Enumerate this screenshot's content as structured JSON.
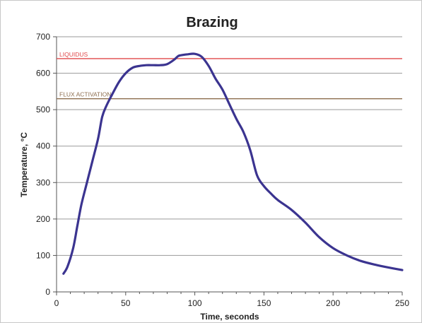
{
  "chart_data": {
    "type": "line",
    "title": "Brazing",
    "xlabel": "Time, seconds",
    "ylabel": "Temperature, °C",
    "xlim": [
      0,
      250
    ],
    "ylim": [
      0,
      700
    ],
    "x_ticks": [
      "0",
      "50",
      "100",
      "150",
      "200",
      "250"
    ],
    "y_ticks": [
      "0",
      "100",
      "200",
      "300",
      "400",
      "500",
      "600",
      "700"
    ],
    "grid": "horizontal",
    "series": [
      {
        "color": "#3b3490",
        "x": [
          5,
          8,
          12,
          15,
          18,
          22,
          26,
          30,
          33,
          36,
          40,
          45,
          50,
          55,
          60,
          65,
          70,
          75,
          80,
          85,
          88,
          91,
          95,
          100,
          105,
          110,
          115,
          120,
          125,
          130,
          135,
          140,
          145,
          150,
          155,
          160,
          170,
          180,
          190,
          200,
          210,
          220,
          230,
          240,
          250
        ],
        "y": [
          50,
          70,
          120,
          180,
          240,
          300,
          360,
          420,
          480,
          510,
          540,
          575,
          600,
          615,
          620,
          622,
          622,
          622,
          625,
          637,
          647,
          650,
          652,
          653,
          645,
          620,
          585,
          555,
          515,
          475,
          440,
          390,
          320,
          290,
          270,
          252,
          225,
          190,
          150,
          120,
          100,
          85,
          75,
          67,
          60
        ]
      }
    ],
    "reference_lines": [
      {
        "label": "LIQUIDUS",
        "y": 640,
        "color": "#e0484a"
      },
      {
        "label": "FLUX ACTIVATION",
        "y": 530,
        "color": "#8c6d4e"
      }
    ]
  }
}
